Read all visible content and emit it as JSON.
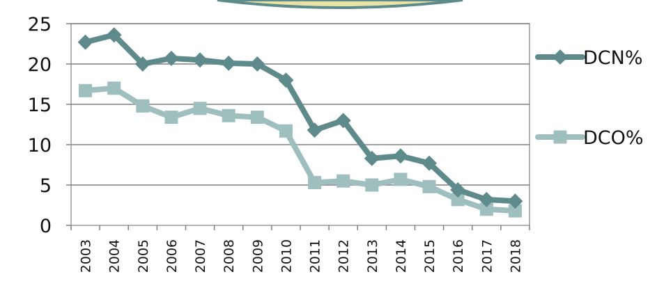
{
  "chart_data": {
    "type": "line",
    "title": "",
    "xlabel": "",
    "ylabel": "",
    "categories": [
      "2003",
      "2004",
      "2005",
      "2006",
      "2007",
      "2008",
      "2009",
      "2010",
      "2011",
      "2012",
      "2013",
      "2014",
      "2015",
      "2016",
      "2017",
      "2018"
    ],
    "ylim": [
      0,
      25
    ],
    "yticks": [
      0,
      5,
      10,
      15,
      20,
      25
    ],
    "grid": true,
    "legend_position": "right",
    "series": [
      {
        "name": "DCN%",
        "color": "#5f8a8b",
        "marker": "diamond",
        "values": [
          22.7,
          23.6,
          20.0,
          20.7,
          20.5,
          20.1,
          20.0,
          18.0,
          11.8,
          13.0,
          8.3,
          8.6,
          7.7,
          4.4,
          3.2,
          3.0
        ]
      },
      {
        "name": "DCO%",
        "color": "#9fbebe",
        "marker": "square",
        "values": [
          16.7,
          17.0,
          14.8,
          13.4,
          14.5,
          13.6,
          13.4,
          11.7,
          5.3,
          5.5,
          5.0,
          5.7,
          4.8,
          3.2,
          2.0,
          1.8
        ]
      }
    ]
  }
}
